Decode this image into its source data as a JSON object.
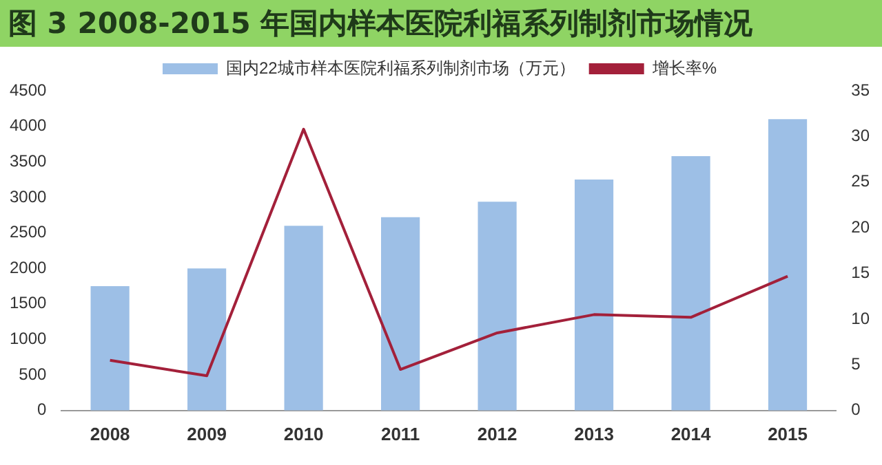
{
  "chart_data": {
    "type": "bar",
    "title": "图 3  2008-2015 年国内样本医院利福系列制剂市场情况",
    "categories": [
      "2008",
      "2009",
      "2010",
      "2011",
      "2012",
      "2013",
      "2014",
      "2015"
    ],
    "series": [
      {
        "name": "国内22城市样本医院利福系列制剂市场（万元）",
        "color": "#9dbfe6",
        "values": [
          1750,
          2000,
          2600,
          2720,
          2940,
          3250,
          3580,
          4100
        ]
      },
      {
        "name": "增长率%",
        "type": "line",
        "axis": "y2",
        "color": "#a3203a",
        "values": [
          5.5,
          3.8,
          30.8,
          4.5,
          8.5,
          10.5,
          10.2,
          14.7
        ]
      }
    ],
    "ylim": [
      0,
      4500
    ],
    "yticks": [
      0,
      500,
      1000,
      1500,
      2000,
      2500,
      3000,
      3500,
      4000,
      4500
    ],
    "y2lim": [
      0,
      35
    ],
    "y2ticks": [
      0,
      5,
      10,
      15,
      20,
      25,
      30,
      35
    ],
    "legend": "top",
    "grid": false,
    "marker": "none"
  }
}
